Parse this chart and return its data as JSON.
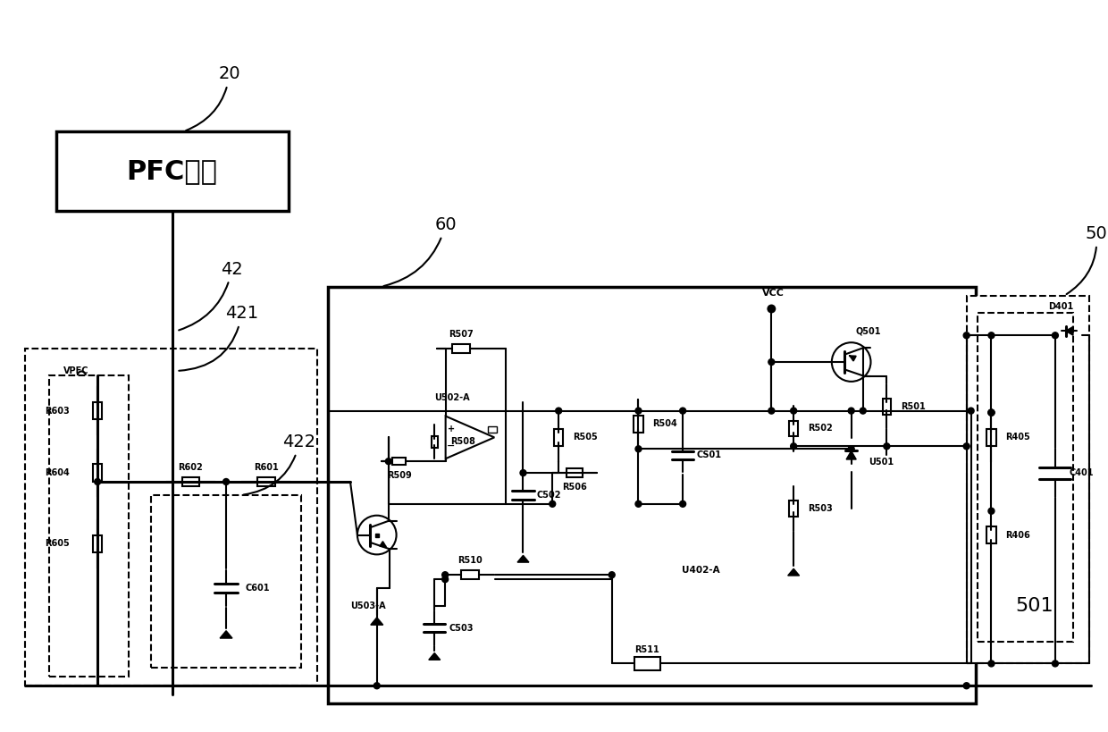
{
  "bg": "#ffffff",
  "lc": "#000000",
  "figsize": [
    12.4,
    8.19
  ],
  "dpi": 100,
  "pfc_text": "PFC电路",
  "n20": "20",
  "n42": "42",
  "n60": "60",
  "n50": "50",
  "n421": "421",
  "n422": "422",
  "n501": "501",
  "vpfc": "VPFC",
  "vcc": "VCC",
  "R603": "R603",
  "R604": "R604",
  "R605": "R605",
  "R602": "R602",
  "R601": "R601",
  "C601": "C601",
  "R507": "R507",
  "R508": "R508",
  "R509": "R509",
  "R510": "R510",
  "R505": "R505",
  "R506": "R506",
  "R504": "R504",
  "R502": "R502",
  "R503": "R503",
  "R501": "R501",
  "R511": "R511",
  "C502": "C502",
  "C503": "C503",
  "CS01": "CS01",
  "R405": "R405",
  "R406": "R406",
  "C401": "C401",
  "D401": "D401",
  "U502A": "U502-A",
  "U503A": "U503-A",
  "U402A": "U402-A",
  "U501": "U501",
  "Q501": "Q501"
}
